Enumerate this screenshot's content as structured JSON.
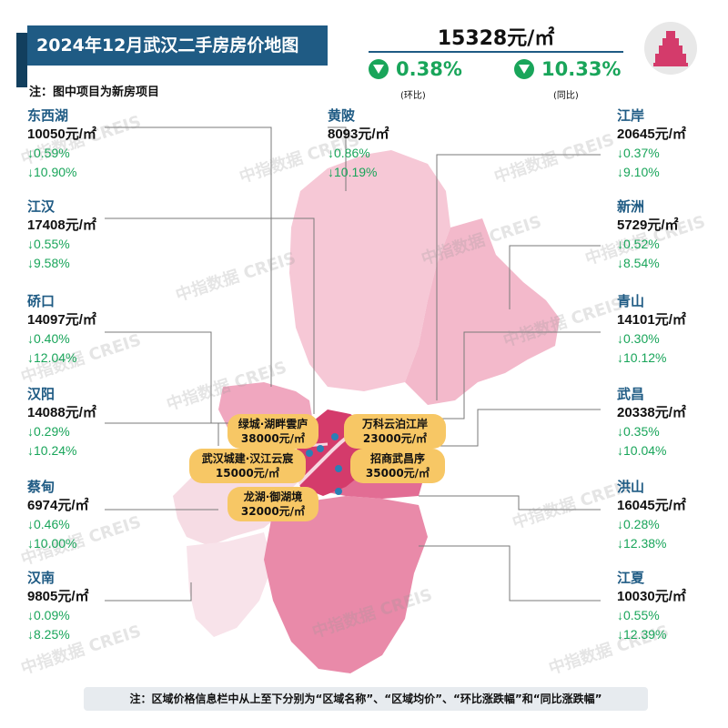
{
  "header": {
    "title": "2024年12月武汉二手房房价地图",
    "note": "注：图中项目为新房项目",
    "avg_price": "15328元/㎡",
    "mom_change": "0.38%",
    "mom_label": "(环比)",
    "yoy_change": "10.33%",
    "yoy_label": "(同比)"
  },
  "watermark": "中指数据 CREIS",
  "regions": [
    {
      "name": "东西湖",
      "price": "10050元/㎡",
      "mom": "↓0.59%",
      "yoy": "↓10.90%"
    },
    {
      "name": "黄陂",
      "price": "8093元/㎡",
      "mom": "↓0.86%",
      "yoy": "↓10.19%"
    },
    {
      "name": "江岸",
      "price": "20645元/㎡",
      "mom": "↓0.37%",
      "yoy": "↓9.10%"
    },
    {
      "name": "江汉",
      "price": "17408元/㎡",
      "mom": "↓0.55%",
      "yoy": "↓9.58%"
    },
    {
      "name": "新洲",
      "price": "5729元/㎡",
      "mom": "↓0.52%",
      "yoy": "↓8.54%"
    },
    {
      "name": "硚口",
      "price": "14097元/㎡",
      "mom": "↓0.40%",
      "yoy": "↓12.04%"
    },
    {
      "name": "青山",
      "price": "14101元/㎡",
      "mom": "↓0.30%",
      "yoy": "↓10.12%"
    },
    {
      "name": "汉阳",
      "price": "14088元/㎡",
      "mom": "↓0.29%",
      "yoy": "↓10.24%"
    },
    {
      "name": "武昌",
      "price": "20338元/㎡",
      "mom": "↓0.35%",
      "yoy": "↓10.04%"
    },
    {
      "name": "蔡甸",
      "price": "6974元/㎡",
      "mom": "↓0.46%",
      "yoy": "↓10.00%"
    },
    {
      "name": "洪山",
      "price": "16045元/㎡",
      "mom": "↓0.28%",
      "yoy": "↓12.38%"
    },
    {
      "name": "汉南",
      "price": "9805元/㎡",
      "mom": "↓0.09%",
      "yoy": "↓8.25%"
    },
    {
      "name": "江夏",
      "price": "10030元/㎡",
      "mom": "↓0.55%",
      "yoy": "↓12.39%"
    }
  ],
  "projects": [
    {
      "name": "绿城·湖畔雲庐",
      "price": "38000元/㎡"
    },
    {
      "name": "万科云泊江岸",
      "price": "23000元/㎡"
    },
    {
      "name": "武汉城建·汉江云宸",
      "price": "15000元/㎡"
    },
    {
      "name": "招商武昌序",
      "price": "35000元/㎡"
    },
    {
      "name": "龙湖·御湖境",
      "price": "32000元/㎡"
    }
  ],
  "footer": "注：区域价格信息栏中从上至下分别为“区域名称”、“区域均价”、“环比涨跌幅”和“同比涨跌幅”",
  "colors": {
    "brand_blue": "#1f5b84",
    "down_green": "#19a55a",
    "map_light": "#f6dce4",
    "map_mid": "#f0afc4",
    "map_dark": "#e6799b",
    "map_core": "#d43b6b",
    "project_yellow": "#f7c765"
  }
}
